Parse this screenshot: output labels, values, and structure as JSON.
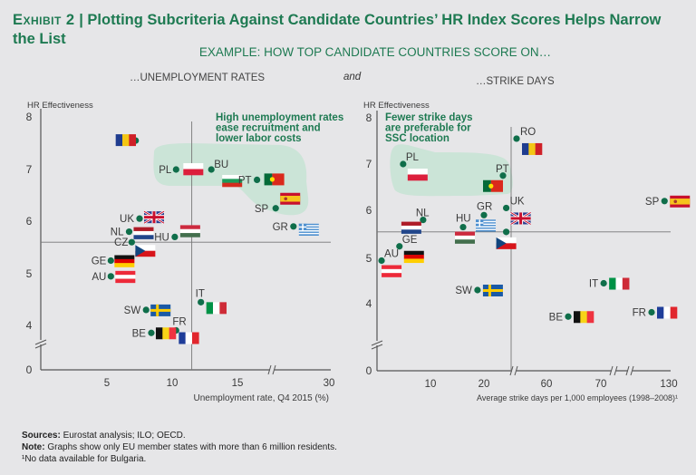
{
  "header": {
    "exhibit": "Exhibit 2",
    "separator": "|",
    "title": "Plotting Subcriteria Against Candidate Countries’ HR Index Scores Helps Narrow the List",
    "subtitle": "EXAMPLE: HOW TOP CANDIDATE COUNTRIES SCORE ON…",
    "left_panel_heading": "…UNEMPLOYMENT RATES",
    "connector": "and",
    "right_panel_heading": "…STRIKE DAYS"
  },
  "colors": {
    "accent": "#1e7a52",
    "dot": "#0f6e4a",
    "highlight": "#c6e3d3",
    "axis": "#555555"
  },
  "chart_data": [
    {
      "type": "scatter",
      "title": "…UNEMPLOYMENT RATES",
      "xlabel": "Unemployment rate, Q4 2015 (%)",
      "ylabel": "HR Effectiveness",
      "x_ticks": [
        "5",
        "10",
        "15",
        "30"
      ],
      "y_ticks": [
        "0",
        "4",
        "5",
        "6",
        "7",
        "8"
      ],
      "xlim": [
        0,
        30
      ],
      "ylim": [
        0,
        8
      ],
      "x_axis_break": "between 15 and 30",
      "y_axis_break": "between 0 and 4",
      "reference_lines": {
        "x": 11.5,
        "y": 5.6
      },
      "annotation": "High unemployment rates ease recruitment and lower labor costs",
      "highlighted": [
        "PL",
        "BU",
        "PT",
        "SP"
      ],
      "points": [
        {
          "label": "RO",
          "x": 7.2,
          "y": 7.55
        },
        {
          "label": "PL",
          "x": 10.3,
          "y": 7.0
        },
        {
          "label": "BU",
          "x": 13.0,
          "y": 7.0
        },
        {
          "label": "PT",
          "x": 16.5,
          "y": 6.8
        },
        {
          "label": "SP",
          "x": 21.0,
          "y": 6.25
        },
        {
          "label": "GR",
          "x": 24.5,
          "y": 5.9
        },
        {
          "label": "UK",
          "x": 7.5,
          "y": 6.05
        },
        {
          "label": "NL",
          "x": 6.7,
          "y": 5.8
        },
        {
          "label": "HU",
          "x": 10.2,
          "y": 5.7
        },
        {
          "label": "CZ",
          "x": 6.9,
          "y": 5.6
        },
        {
          "label": "GE",
          "x": 5.3,
          "y": 5.25
        },
        {
          "label": "AU",
          "x": 5.3,
          "y": 4.95
        },
        {
          "label": "IT",
          "x": 12.2,
          "y": 4.45
        },
        {
          "label": "SW",
          "x": 8.0,
          "y": 4.3
        },
        {
          "label": "FR",
          "x": 10.3,
          "y": 3.9
        },
        {
          "label": "BE",
          "x": 8.4,
          "y": 3.85
        }
      ]
    },
    {
      "type": "scatter",
      "title": "…STRIKE DAYS",
      "xlabel": "Average strike days per 1,000 employees (1998–2008)¹",
      "ylabel": "HR Effectiveness",
      "x_ticks": [
        "10",
        "20",
        "60",
        "70",
        "130"
      ],
      "y_ticks": [
        "0",
        "4",
        "5",
        "6",
        "7",
        "8"
      ],
      "xlim": [
        0,
        130
      ],
      "ylim": [
        0,
        8
      ],
      "x_axis_break": "between 20 and 60; between 70 and 130",
      "y_axis_break": "between 0 and 4",
      "reference_lines": {
        "x": 25,
        "y": 5.55
      },
      "annotation": "Fewer strike days are preferable for SSC location",
      "highlighted": [
        "PL",
        "PT"
      ],
      "points": [
        {
          "label": "PL",
          "x": 4.8,
          "y": 7.0
        },
        {
          "label": "PT",
          "x": 23.5,
          "y": 6.75
        },
        {
          "label": "RO",
          "x": 26,
          "y": 7.55
        },
        {
          "label": "SP",
          "x": 125,
          "y": 6.2
        },
        {
          "label": "NL",
          "x": 8.6,
          "y": 5.8
        },
        {
          "label": "HU",
          "x": 16.1,
          "y": 5.65
        },
        {
          "label": "GR",
          "x": 20.0,
          "y": 5.9
        },
        {
          "label": "UK",
          "x": 24.1,
          "y": 6.05
        },
        {
          "label": "CZ",
          "x": 24.1,
          "y": 5.55
        },
        {
          "label": "GE",
          "x": 4.1,
          "y": 5.25
        },
        {
          "label": "AU",
          "x": 0.7,
          "y": 4.95
        },
        {
          "label": "SW",
          "x": 18.8,
          "y": 4.3
        },
        {
          "label": "BE",
          "x": 64,
          "y": 3.85
        },
        {
          "label": "IT",
          "x": 71.7,
          "y": 4.45
        },
        {
          "label": "FR",
          "x": 110,
          "y": 3.9
        }
      ]
    }
  ],
  "footer": {
    "sources_label": "Sources:",
    "sources_text": " Eurostat analysis; ILO; OECD.",
    "note_label": "Note:",
    "note_text": " Graphs show only EU member states with more than 6 million residents.",
    "footnote": "¹No data available for Bulgaria."
  }
}
